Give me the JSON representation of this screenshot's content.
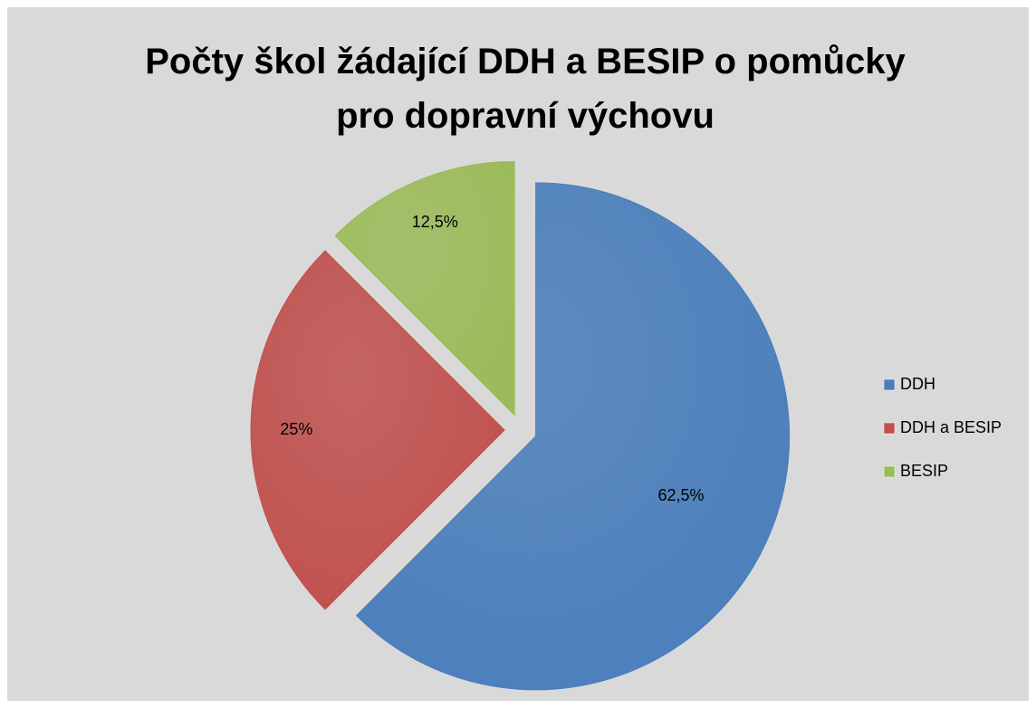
{
  "chart_data": {
    "type": "pie",
    "title": "Počty škol žádající DDH a BESIP o pomůcky pro dopravní výchovu",
    "categories": [
      "DDH",
      "DDH a BESIP",
      "BESIP"
    ],
    "values": [
      62.5,
      25,
      12.5
    ],
    "value_labels": [
      "62,5%",
      "25%",
      "12,5%"
    ],
    "colors": [
      "#4a7ebb",
      "#c0504d",
      "#9bbb59"
    ],
    "legend": "right"
  }
}
